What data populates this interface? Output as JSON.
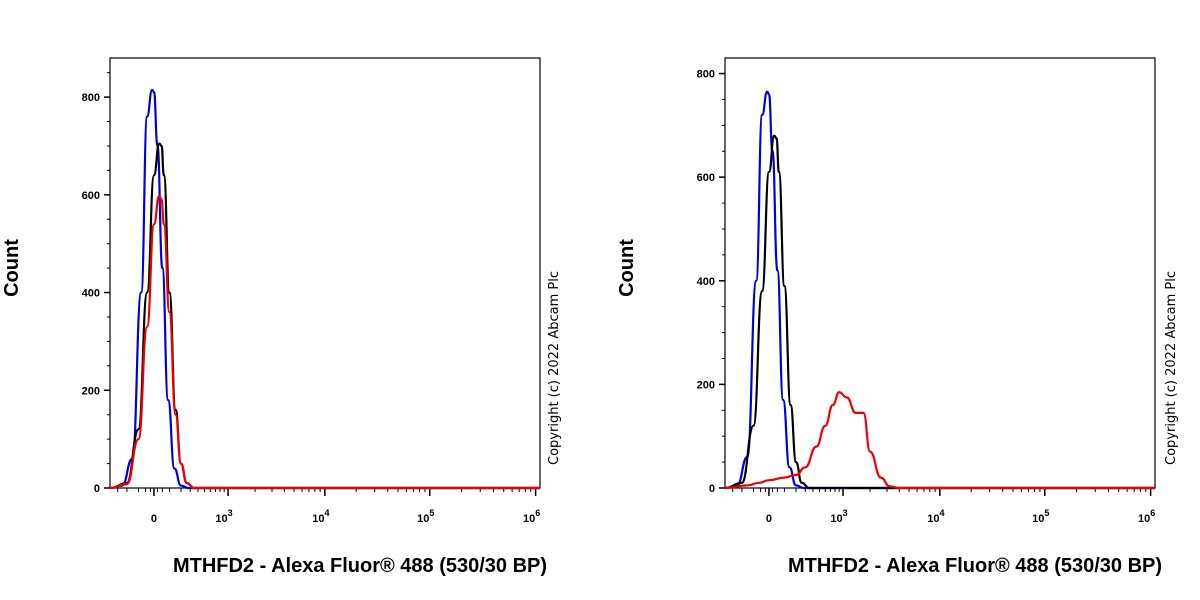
{
  "chart_data": [
    {
      "type": "line",
      "title": "",
      "xlabel": "MTHFD2 - Alexa Fluor® 488 (530/30 BP)",
      "ylabel": "Count",
      "copyright": "Copyright (c) 2022 Abcam Plc",
      "x_scale": "biexponential",
      "ylim": [
        0,
        880
      ],
      "y_ticks": [
        0,
        200,
        400,
        600,
        800
      ],
      "x_tick_labels": [
        {
          "value": 0,
          "base": "0",
          "exp": ""
        },
        {
          "value": 1000,
          "base": "10",
          "exp": "3"
        },
        {
          "value": 10000,
          "base": "10",
          "exp": "4"
        },
        {
          "value": 100000,
          "base": "10",
          "exp": "5"
        },
        {
          "value": 1000000,
          "base": "10",
          "exp": "6"
        }
      ],
      "grid": false,
      "series": [
        {
          "color": "#0000dd",
          "x": [
            -400,
            -250,
            -150,
            -80,
            -40,
            -10,
            0,
            20,
            50,
            90,
            140,
            200,
            280,
            400
          ],
          "y": [
            0,
            5,
            60,
            400,
            760,
            815,
            810,
            700,
            450,
            180,
            40,
            5,
            0,
            0
          ]
        },
        {
          "color": "#000000",
          "x": [
            -400,
            -200,
            -100,
            -40,
            0,
            30,
            45,
            60,
            100,
            150,
            200,
            260,
            350,
            450
          ],
          "y": [
            0,
            10,
            120,
            400,
            640,
            705,
            700,
            640,
            400,
            160,
            50,
            10,
            0,
            0
          ]
        },
        {
          "color": "#ee0000",
          "x": [
            -400,
            -200,
            -100,
            -40,
            0,
            30,
            45,
            60,
            100,
            150,
            200,
            260,
            350,
            450
          ],
          "y": [
            0,
            8,
            100,
            330,
            540,
            598,
            590,
            540,
            360,
            150,
            50,
            10,
            0,
            0
          ]
        }
      ]
    },
    {
      "type": "line",
      "title": "",
      "xlabel": "MTHFD2 - Alexa Fluor® 488 (530/30 BP)",
      "ylabel": "Count",
      "copyright": "Copyright (c) 2022 Abcam Plc",
      "x_scale": "biexponential",
      "ylim": [
        0,
        830
      ],
      "y_ticks": [
        0,
        200,
        400,
        600,
        800
      ],
      "x_tick_labels": [
        {
          "value": 0,
          "base": "0",
          "exp": ""
        },
        {
          "value": 1000,
          "base": "10",
          "exp": "3"
        },
        {
          "value": 10000,
          "base": "10",
          "exp": "4"
        },
        {
          "value": 100000,
          "base": "10",
          "exp": "5"
        },
        {
          "value": 1000000,
          "base": "10",
          "exp": "6"
        }
      ],
      "grid": false,
      "series": [
        {
          "color": "#0000dd",
          "x": [
            -400,
            -250,
            -150,
            -80,
            -40,
            -10,
            0,
            20,
            50,
            90,
            140,
            200,
            280,
            400
          ],
          "y": [
            0,
            5,
            60,
            400,
            720,
            765,
            760,
            650,
            420,
            170,
            40,
            5,
            0,
            0
          ]
        },
        {
          "color": "#000000",
          "x": [
            -400,
            -200,
            -100,
            -40,
            0,
            30,
            45,
            60,
            100,
            150,
            200,
            260,
            350,
            450
          ],
          "y": [
            0,
            10,
            120,
            380,
            610,
            680,
            675,
            610,
            390,
            160,
            50,
            10,
            0,
            0
          ]
        },
        {
          "color": "#ee0000",
          "x": [
            -400,
            -150,
            -60,
            0,
            100,
            200,
            300,
            450,
            600,
            750,
            900,
            1100,
            1400,
            1700,
            2000,
            2600,
            3200,
            4000
          ],
          "y": [
            0,
            5,
            10,
            15,
            20,
            25,
            40,
            80,
            120,
            160,
            185,
            175,
            145,
            145,
            70,
            20,
            3,
            0
          ]
        }
      ]
    }
  ]
}
